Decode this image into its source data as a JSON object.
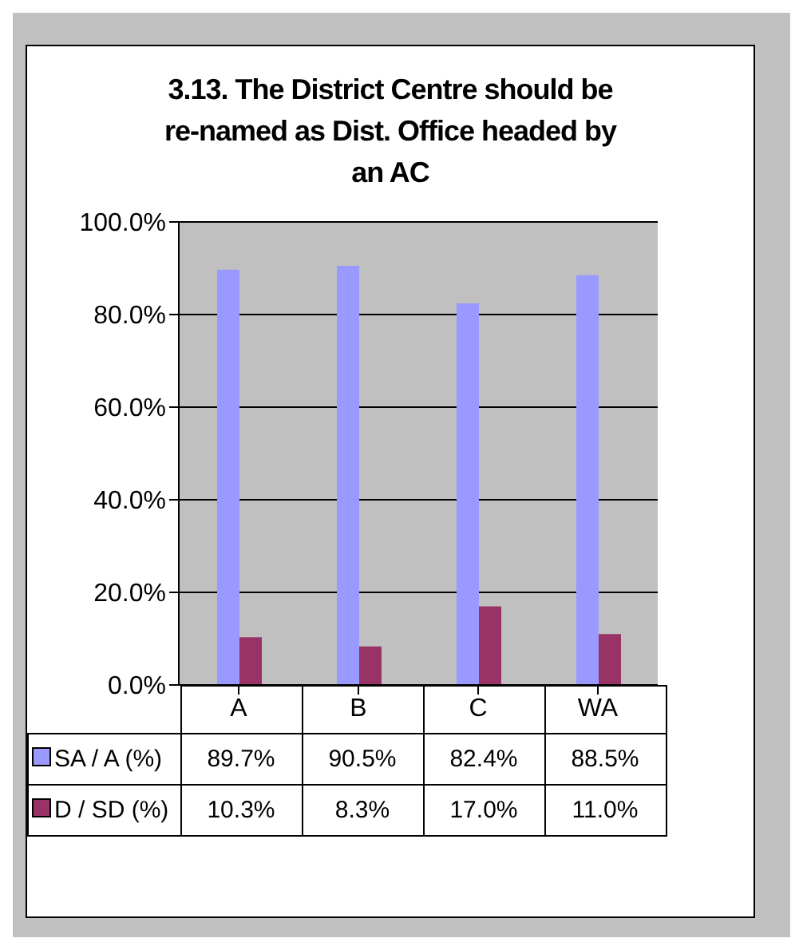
{
  "chart_data": {
    "type": "bar",
    "title": "3.13. The District Centre should be re-named as Dist. Office headed by an AC",
    "categories": [
      "A",
      "B",
      "C",
      "WA"
    ],
    "series": [
      {
        "name": "SA / A (%)",
        "color": "#9999ff",
        "values": [
          89.7,
          90.5,
          82.4,
          88.5
        ],
        "value_labels": [
          "89.7%",
          "90.5%",
          "82.4%",
          "88.5%"
        ]
      },
      {
        "name": "D / SD (%)",
        "color": "#993366",
        "values": [
          10.3,
          8.3,
          17.0,
          11.0
        ],
        "value_labels": [
          "10.3%",
          "8.3%",
          "17.0%",
          "11.0%"
        ]
      }
    ],
    "ylim": [
      0,
      100
    ],
    "yticks": [
      {
        "value": 0,
        "label": "0.0%"
      },
      {
        "value": 20,
        "label": "20.0%"
      },
      {
        "value": 40,
        "label": "40.0%"
      },
      {
        "value": 60,
        "label": "60.0%"
      },
      {
        "value": 80,
        "label": "80.0%"
      },
      {
        "value": 100,
        "label": "100.0%"
      }
    ],
    "grid": "y",
    "legend": "bottom"
  }
}
